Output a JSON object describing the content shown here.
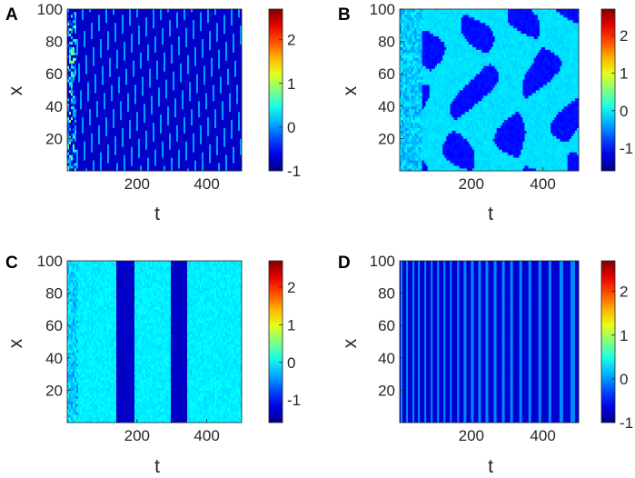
{
  "chart_data": [
    {
      "type": "heatmap",
      "panel_label": "A",
      "pattern": "waves",
      "xlabel": "t",
      "ylabel": "x",
      "xlim": [
        0,
        500
      ],
      "ylim": [
        0,
        100
      ],
      "xticks": [
        200,
        400
      ],
      "yticks": [
        20,
        40,
        60,
        80,
        100
      ],
      "colorbar": {
        "ticks": [
          -1,
          0,
          1,
          2
        ],
        "range": [
          -1,
          2.7
        ]
      },
      "colormap": "jet"
    },
    {
      "type": "heatmap",
      "panel_label": "B",
      "pattern": "patches",
      "xlabel": "t",
      "ylabel": "x",
      "xlim": [
        0,
        500
      ],
      "ylim": [
        0,
        100
      ],
      "xticks": [
        200,
        400
      ],
      "yticks": [
        20,
        40,
        60,
        80,
        100
      ],
      "colorbar": {
        "ticks": [
          -1,
          0,
          1,
          2
        ],
        "range": [
          -1.6,
          2.7
        ]
      },
      "colormap": "jet"
    },
    {
      "type": "heatmap",
      "panel_label": "C",
      "pattern": "bands",
      "xlabel": "t",
      "ylabel": "x",
      "xlim": [
        0,
        500
      ],
      "ylim": [
        0,
        100
      ],
      "xticks": [
        200,
        400
      ],
      "yticks": [
        20,
        40,
        60,
        80,
        100
      ],
      "colorbar": {
        "ticks": [
          -1,
          0,
          1,
          2
        ],
        "range": [
          -1.6,
          2.7
        ]
      },
      "colormap": "jet"
    },
    {
      "type": "heatmap",
      "panel_label": "D",
      "pattern": "stripes",
      "xlabel": "t",
      "ylabel": "x",
      "xlim": [
        0,
        500
      ],
      "ylim": [
        0,
        100
      ],
      "xticks": [
        200,
        400
      ],
      "yticks": [
        20,
        40,
        60,
        80,
        100
      ],
      "colorbar": {
        "ticks": [
          -1,
          0,
          1,
          2
        ],
        "range": [
          -1,
          2.7
        ]
      },
      "colormap": "jet"
    }
  ]
}
